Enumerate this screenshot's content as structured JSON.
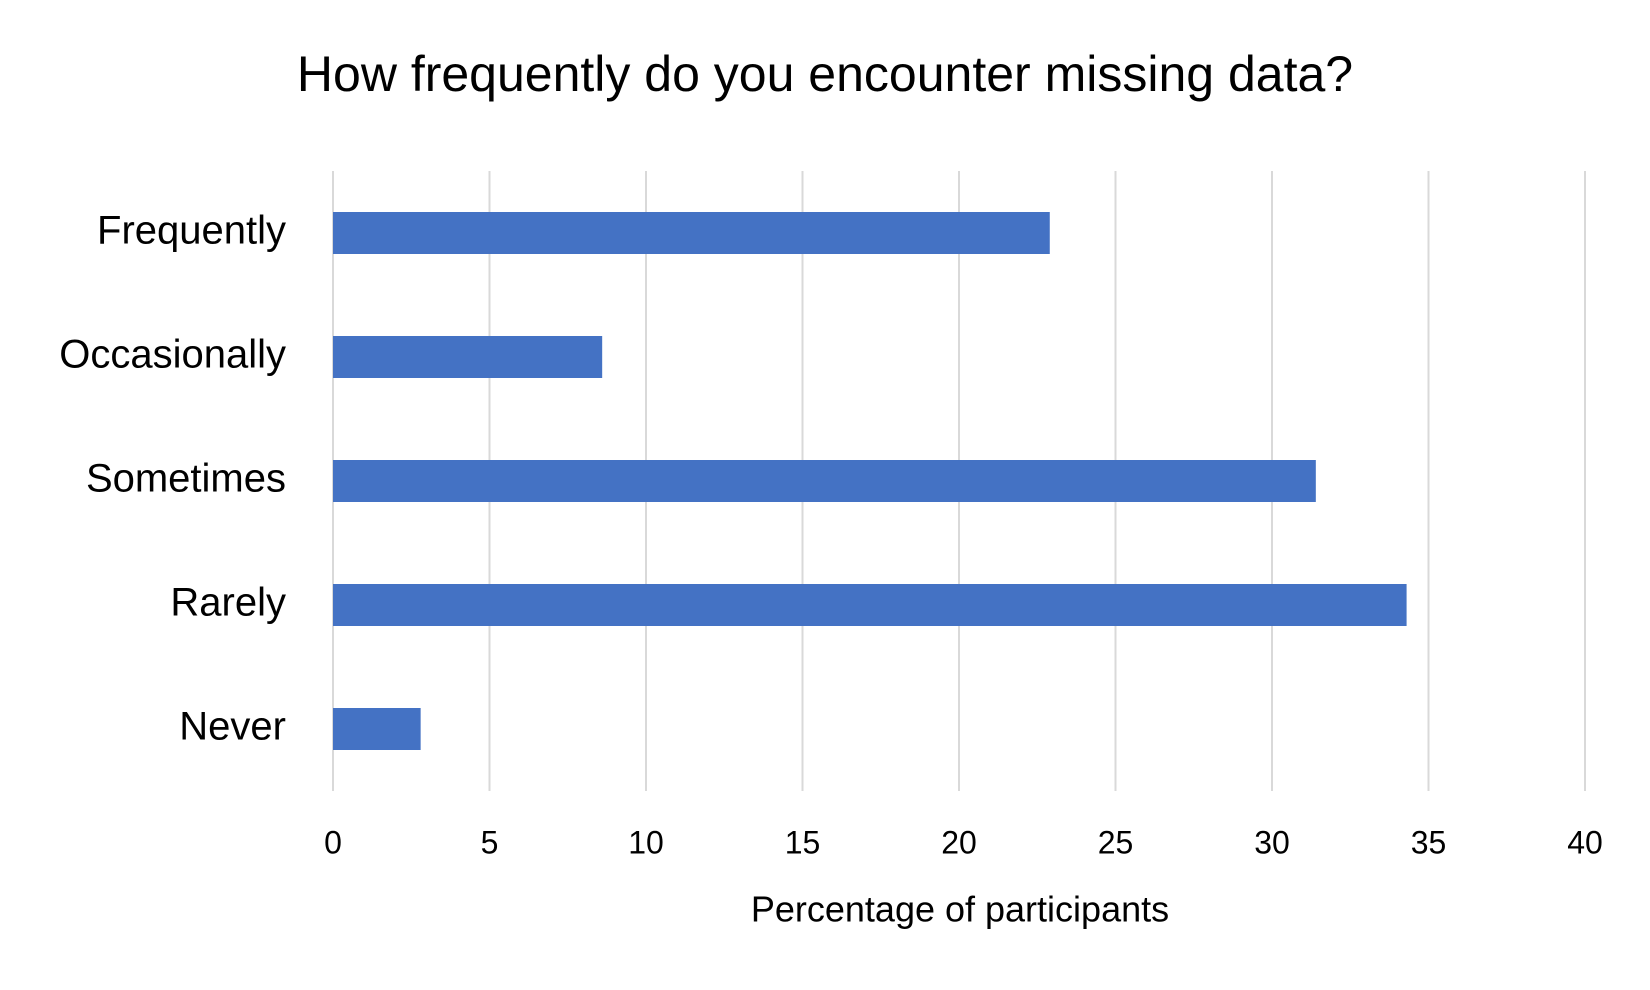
{
  "chart_data": {
    "type": "barh",
    "title": "How frequently do you encounter missing data?",
    "categories": [
      "Frequently",
      "Occasionally",
      "Sometimes",
      "Rarely",
      "Never"
    ],
    "values": [
      22.9,
      8.6,
      31.4,
      34.3,
      2.8
    ],
    "color": "#4472c4",
    "xlabel": "Percentage of participants",
    "xlim": [
      0,
      40
    ],
    "xticks": [
      0,
      5,
      10,
      15,
      20,
      25,
      30,
      35,
      40
    ],
    "grid": true
  }
}
